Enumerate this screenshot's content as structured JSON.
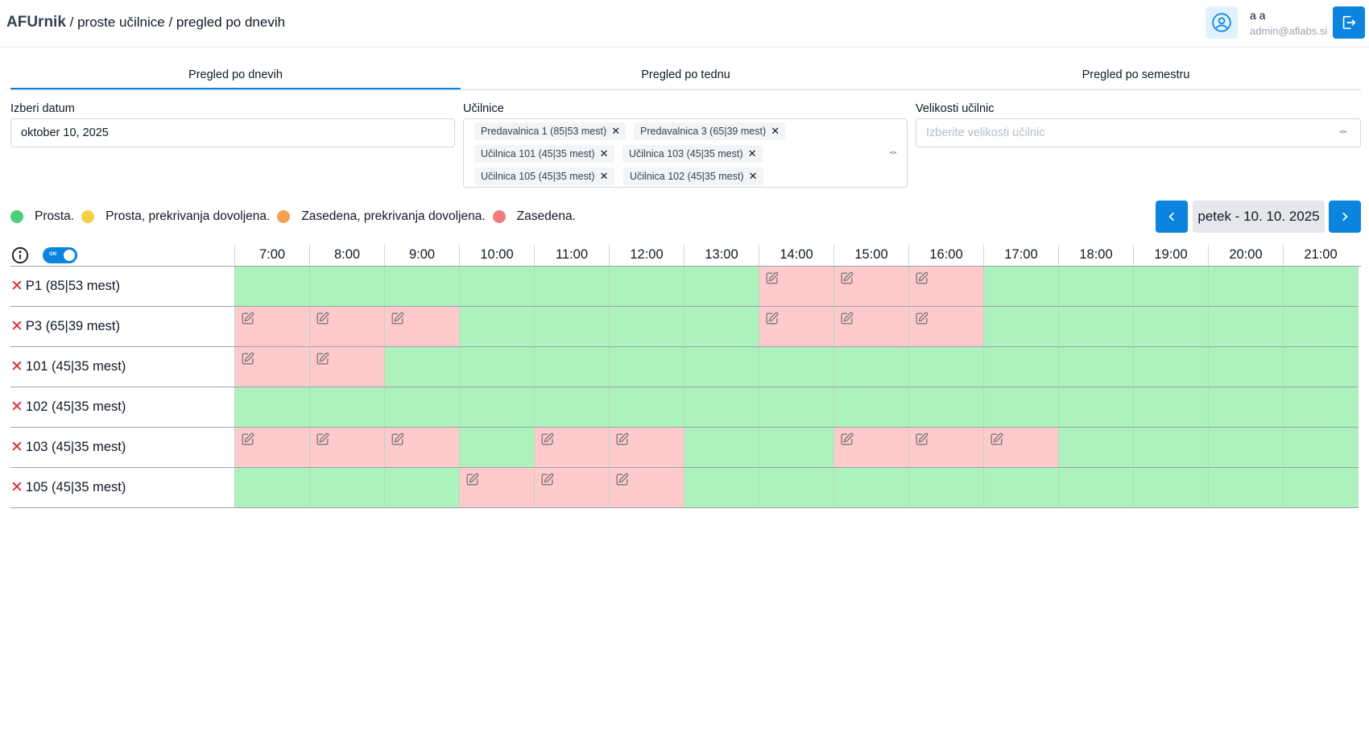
{
  "header": {
    "brand": "AFUrnik",
    "path": " / proste učilnice / pregled po dnevih",
    "user_name": "a a",
    "user_email": "admin@aflabs.si"
  },
  "tabs": [
    {
      "label": "Pregled po dnevih",
      "active": true
    },
    {
      "label": "Pregled po tednu",
      "active": false
    },
    {
      "label": "Pregled po semestru",
      "active": false
    }
  ],
  "form": {
    "date_label": "Izberi datum",
    "date_value": "oktober 10, 2025",
    "rooms_label": "Učilnice",
    "rooms_selected": [
      "Predavalnica 1 (85|53 mest)",
      "Predavalnica 3 (65|39 mest)",
      "Učilnica 101 (45|35 mest)",
      "Učilnica 103 (45|35 mest)",
      "Učilnica 105 (45|35 mest)",
      "Učilnica 102 (45|35 mest)"
    ],
    "sizes_label": "Velikosti učilnic",
    "sizes_placeholder": "Izberite velikosti učilnic"
  },
  "legend": [
    {
      "label": "Prosta.",
      "color": "#4ad07a"
    },
    {
      "label": "Prosta, prekrivanja dovoljena.",
      "color": "#f6cf45"
    },
    {
      "label": "Zasedena, prekrivanja dovoljena.",
      "color": "#f5a052"
    },
    {
      "label": "Zasedena.",
      "color": "#f07b7b"
    }
  ],
  "day_nav": {
    "label": "petek - 10. 10. 2025"
  },
  "toggle_label": "ON",
  "hours": [
    "7:00",
    "8:00",
    "9:00",
    "10:00",
    "11:00",
    "12:00",
    "13:00",
    "14:00",
    "15:00",
    "16:00",
    "17:00",
    "18:00",
    "19:00",
    "20:00",
    "21:00"
  ],
  "rooms": [
    {
      "label": "P1 (85|53 mest)",
      "slots": [
        "free",
        "free",
        "free",
        "free",
        "free",
        "free",
        "free",
        "busy",
        "busy",
        "busy",
        "free",
        "free",
        "free",
        "free",
        "free"
      ]
    },
    {
      "label": "P3 (65|39 mest)",
      "slots": [
        "busy",
        "busy",
        "busy",
        "free",
        "free",
        "free",
        "free",
        "busy",
        "busy",
        "busy",
        "free",
        "free",
        "free",
        "free",
        "free"
      ]
    },
    {
      "label": "101 (45|35 mest)",
      "slots": [
        "busy",
        "busy",
        "free",
        "free",
        "free",
        "free",
        "free",
        "free",
        "free",
        "free",
        "free",
        "free",
        "free",
        "free",
        "free"
      ]
    },
    {
      "label": "102 (45|35 mest)",
      "slots": [
        "free",
        "free",
        "free",
        "free",
        "free",
        "free",
        "free",
        "free",
        "free",
        "free",
        "free",
        "free",
        "free",
        "free",
        "free"
      ]
    },
    {
      "label": "103 (45|35 mest)",
      "slots": [
        "busy",
        "busy",
        "busy",
        "free",
        "busy",
        "busy",
        "free",
        "free",
        "busy",
        "busy",
        "busy",
        "free",
        "free",
        "free",
        "free"
      ]
    },
    {
      "label": "105 (45|35 mest)",
      "slots": [
        "free",
        "free",
        "free",
        "busy",
        "busy",
        "busy",
        "free",
        "free",
        "free",
        "free",
        "free",
        "free",
        "free",
        "free",
        "free"
      ]
    }
  ],
  "colors": {
    "accent": "#0b84e0",
    "free_cell": "#adf1bd",
    "busy_cell": "#fecacb"
  }
}
